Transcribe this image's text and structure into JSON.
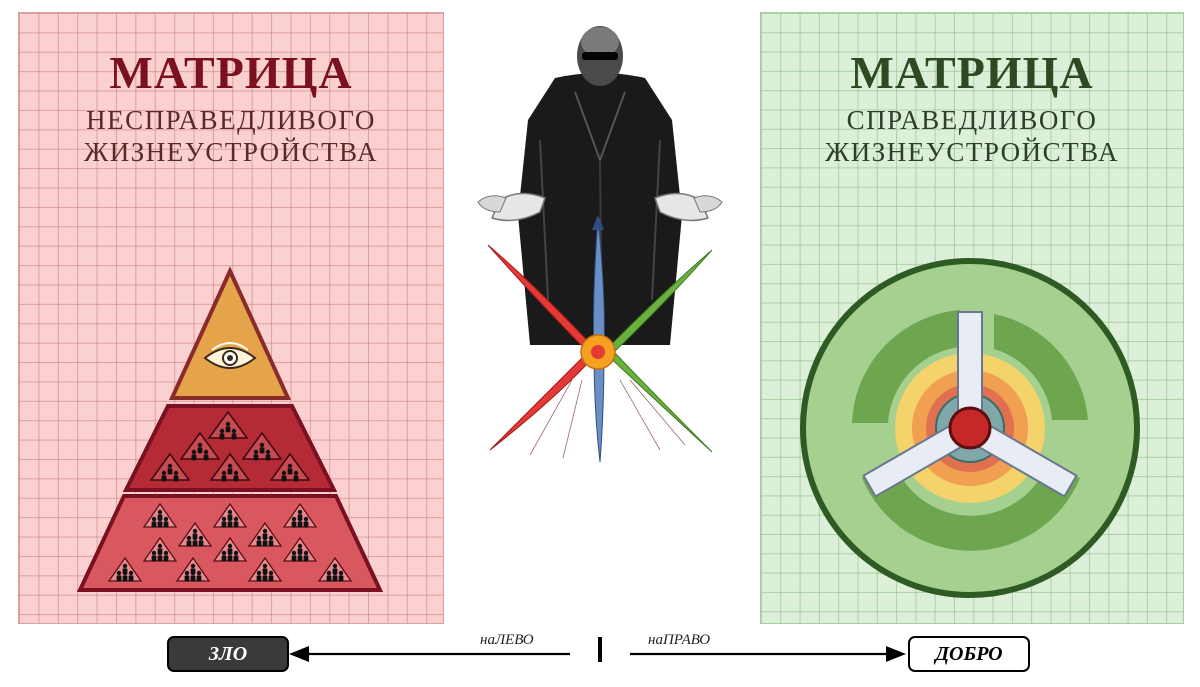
{
  "left_panel": {
    "title": "МАТРИЦА",
    "subtitle_line1": "НЕСПРАВЕДЛИВОГО",
    "subtitle_line2": "ЖИЗНЕУСТРОЙСТВА"
  },
  "right_panel": {
    "title": "МАТРИЦА",
    "subtitle_line1": "СПРАВЕДЛИВОГО",
    "subtitle_line2": "ЖИЗНЕУСТРОЙСТВА"
  },
  "navigation": {
    "left_button": "ЗЛО",
    "left_label": "наЛЕВО",
    "right_label": "наПРАВО",
    "right_button": "ДОБРО"
  },
  "colors": {
    "left_panel_bg": "#fad0d0",
    "right_panel_bg": "#dcefd8",
    "pyramid_top": "#e6a44a",
    "pyramid_mid": "#b42a35",
    "pyramid_base": "#d9575e",
    "wheel_outer": "#a6d08f",
    "wheel_ring_dark": "#6da64f",
    "center_red": "#c62828",
    "arrow_red": "#e53935",
    "arrow_blue": "#6a8fc4",
    "arrow_green": "#6ab23e",
    "hub_orange": "#f4a020"
  },
  "icons": [
    "all-seeing-eye-icon",
    "hierarchy-people-icon",
    "figure-in-black-coat"
  ]
}
